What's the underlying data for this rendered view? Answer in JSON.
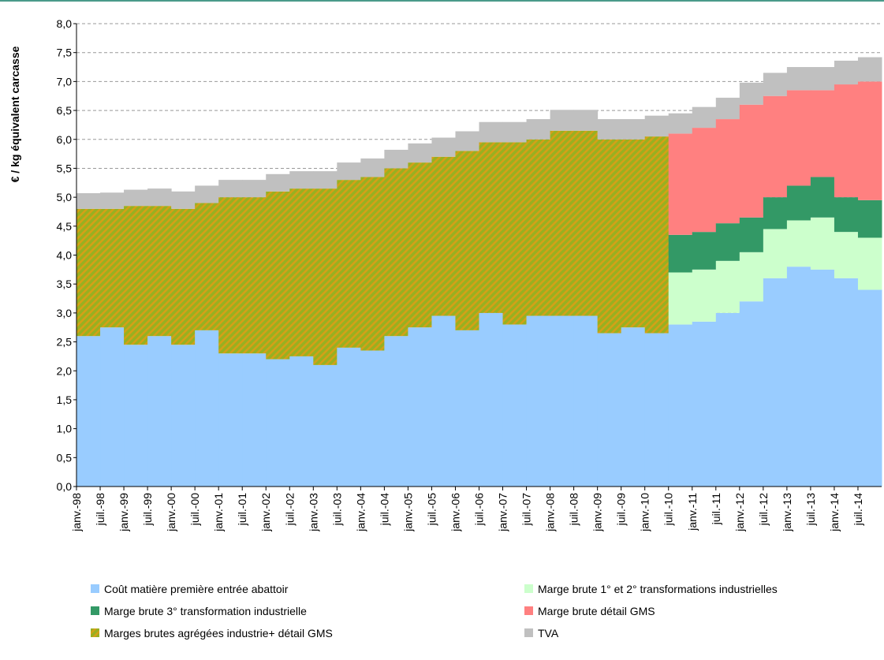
{
  "chart_data": {
    "type": "stacked-bar",
    "y_label": "€ / kg équivalent carcasse",
    "categories": [
      "janv.-98",
      "juil.-98",
      "janv.-99",
      "juil.-99",
      "janv.-00",
      "juil.-00",
      "janv.-01",
      "juil.-01",
      "janv.-02",
      "juil.-02",
      "janv.-03",
      "juil.-03",
      "janv.-04",
      "juil.-04",
      "janv.-05",
      "juil.-05",
      "janv.-06",
      "juil.-06",
      "janv.-07",
      "juil.-07",
      "janv.-08",
      "juil.-08",
      "janv.-09",
      "juil.-09",
      "janv.-10",
      "juil.-10",
      "janv.-11",
      "juil.-11",
      "janv.-12",
      "juil.-12",
      "janv.-13",
      "juil.-13",
      "janv.-14",
      "juil.-14"
    ],
    "series": [
      {
        "name": "Coût matière première entrée abattoir",
        "color": "#99ccff",
        "values": [
          2.6,
          2.75,
          2.45,
          2.6,
          2.45,
          2.7,
          2.3,
          2.3,
          2.2,
          2.25,
          2.1,
          2.4,
          2.35,
          2.6,
          2.75,
          2.95,
          2.7,
          3.0,
          2.8,
          2.95,
          2.95,
          2.95,
          2.65,
          2.75,
          2.65,
          2.8,
          2.85,
          3.0,
          3.2,
          3.6,
          3.8,
          3.75,
          3.6,
          3.4
        ]
      },
      {
        "name": "Marges brutes agrégées industrie+ détail GMS",
        "color": "#99b020",
        "values": [
          2.2,
          2.05,
          2.4,
          2.25,
          2.35,
          2.2,
          2.7,
          2.7,
          2.9,
          2.9,
          3.05,
          2.9,
          3.0,
          2.9,
          2.85,
          2.75,
          3.1,
          2.95,
          3.15,
          3.05,
          3.2,
          3.2,
          3.35,
          3.25,
          3.4,
          null,
          null,
          null,
          null,
          null,
          null,
          null,
          null,
          null
        ]
      },
      {
        "name": "Marge brute 1° et 2° transformations industrielles",
        "color": "#ccffcc",
        "values": [
          null,
          null,
          null,
          null,
          null,
          null,
          null,
          null,
          null,
          null,
          null,
          null,
          null,
          null,
          null,
          null,
          null,
          null,
          null,
          null,
          null,
          null,
          null,
          null,
          null,
          0.9,
          0.9,
          0.9,
          0.85,
          0.85,
          0.8,
          0.9,
          0.8,
          0.9
        ]
      },
      {
        "name": "Marge brute 3° transformation industrielle",
        "color": "#339966",
        "values": [
          null,
          null,
          null,
          null,
          null,
          null,
          null,
          null,
          null,
          null,
          null,
          null,
          null,
          null,
          null,
          null,
          null,
          null,
          null,
          null,
          null,
          null,
          null,
          null,
          null,
          0.65,
          0.65,
          0.65,
          0.6,
          0.55,
          0.6,
          0.7,
          0.6,
          0.65
        ]
      },
      {
        "name": "Marge brute détail GMS",
        "color": "#ff8080",
        "values": [
          null,
          null,
          null,
          null,
          null,
          null,
          null,
          null,
          null,
          null,
          null,
          null,
          null,
          null,
          null,
          null,
          null,
          null,
          null,
          null,
          null,
          null,
          null,
          null,
          null,
          1.75,
          1.8,
          1.8,
          1.95,
          1.75,
          1.65,
          1.5,
          1.95,
          2.05
        ]
      },
      {
        "name": "TVA",
        "color": "#c0c0c0",
        "values": [
          0.27,
          0.28,
          0.28,
          0.3,
          0.3,
          0.3,
          0.3,
          0.3,
          0.3,
          0.3,
          0.3,
          0.3,
          0.32,
          0.32,
          0.33,
          0.33,
          0.34,
          0.35,
          0.35,
          0.35,
          0.36,
          0.36,
          0.35,
          0.35,
          0.36,
          0.35,
          0.36,
          0.37,
          0.38,
          0.4,
          0.4,
          0.4,
          0.41,
          0.42
        ]
      }
    ],
    "ylim": [
      0,
      8
    ],
    "yticks": [
      {
        "value": 0,
        "label": "0,0"
      },
      {
        "value": 0.5,
        "label": "0,5"
      },
      {
        "value": 1,
        "label": "1,0"
      },
      {
        "value": 1.5,
        "label": "1,5"
      },
      {
        "value": 2,
        "label": "2,0"
      },
      {
        "value": 2.5,
        "label": "2,5"
      },
      {
        "value": 3,
        "label": "3,0"
      },
      {
        "value": 3.5,
        "label": "3,5"
      },
      {
        "value": 4,
        "label": "4,0"
      },
      {
        "value": 4.5,
        "label": "4,5"
      },
      {
        "value": 5,
        "label": "5,0"
      },
      {
        "value": 5.5,
        "label": "5,5"
      },
      {
        "value": 6,
        "label": "6,0"
      },
      {
        "value": 6.5,
        "label": "6,5"
      },
      {
        "value": 7,
        "label": "7,0"
      },
      {
        "value": 7.5,
        "label": "7,5"
      },
      {
        "value": 8,
        "label": "8,0"
      }
    ],
    "grid": true
  }
}
